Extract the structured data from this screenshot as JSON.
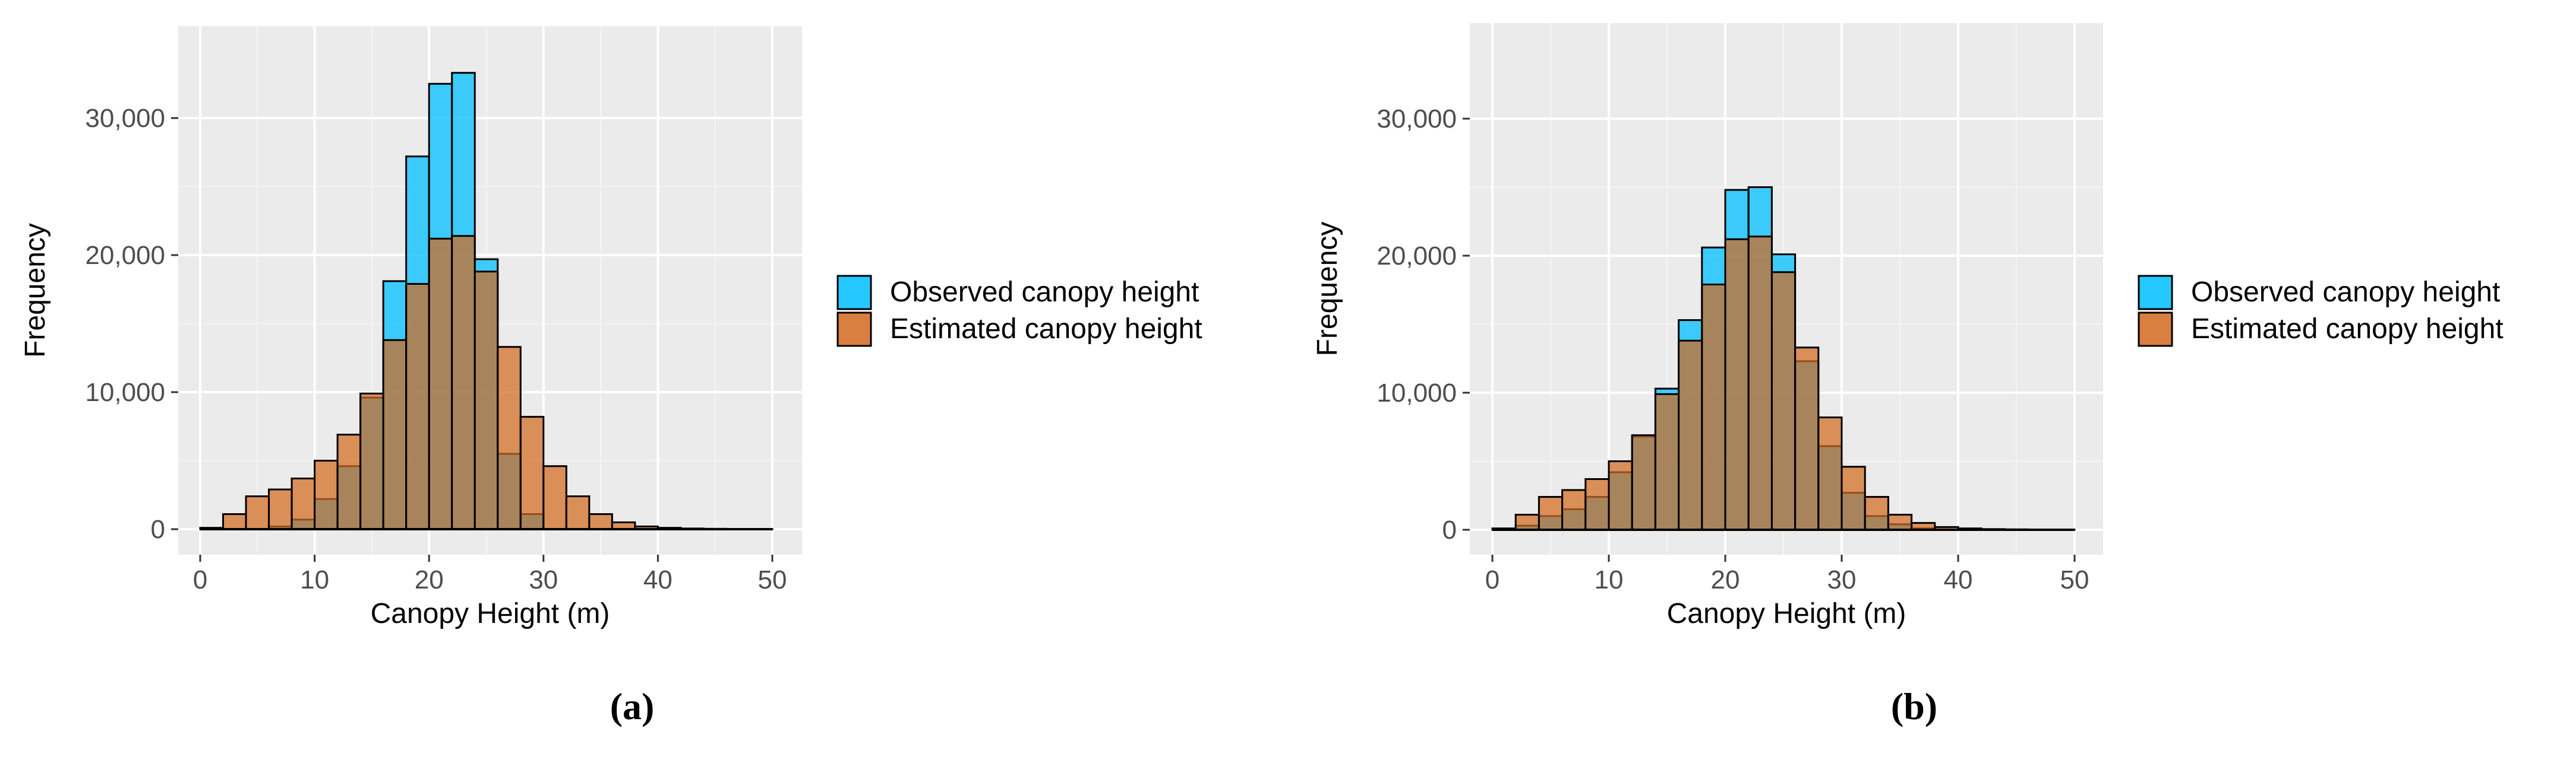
{
  "figure": {
    "panels": [
      {
        "panel_label": "(a)",
        "chart_data": {
          "type": "bar",
          "title": "",
          "xlabel": "Canopy Height (m)",
          "ylabel": "Frequency",
          "xlim": [
            0,
            50
          ],
          "ylim": [
            0,
            35000
          ],
          "x_ticks": [
            0,
            10,
            20,
            30,
            40,
            50
          ],
          "y_ticks": [
            0,
            10000,
            20000,
            30000
          ],
          "y_tick_labels": [
            "0",
            "10,000",
            "20,000",
            "30,000"
          ],
          "grid": true,
          "legend_position": "right",
          "bin_width": 2,
          "bin_centers": [
            1,
            3,
            5,
            7,
            9,
            11,
            13,
            15,
            17,
            19,
            21,
            23,
            25,
            27,
            29,
            31,
            33,
            35,
            37,
            39,
            41,
            43,
            45,
            47,
            49
          ],
          "series": [
            {
              "name": "Observed canopy height",
              "color": "#00BFFF",
              "values": [
                0,
                0,
                0,
                200,
                700,
                2200,
                4600,
                9600,
                18100,
                27200,
                32500,
                33300,
                19700,
                5500,
                1100,
                0,
                0,
                0,
                0,
                0,
                0,
                0,
                0,
                0,
                0
              ]
            },
            {
              "name": "Estimated canopy height",
              "color": "#D2691E",
              "values": [
                100,
                1100,
                2400,
                2900,
                3700,
                5000,
                6900,
                9900,
                13800,
                17900,
                21200,
                21400,
                18800,
                13300,
                8200,
                4600,
                2400,
                1100,
                500,
                200,
                100,
                50,
                30,
                20,
                10
              ]
            }
          ]
        }
      },
      {
        "panel_label": "(b)",
        "chart_data": {
          "type": "bar",
          "title": "",
          "xlabel": "Canopy Height (m)",
          "ylabel": "Frequency",
          "xlim": [
            0,
            50
          ],
          "ylim": [
            0,
            35000
          ],
          "x_ticks": [
            0,
            10,
            20,
            30,
            40,
            50
          ],
          "y_ticks": [
            0,
            10000,
            20000,
            30000
          ],
          "y_tick_labels": [
            "0",
            "10,000",
            "20,000",
            "30,000"
          ],
          "grid": true,
          "legend_position": "right",
          "bin_width": 2,
          "bin_centers": [
            1,
            3,
            5,
            7,
            9,
            11,
            13,
            15,
            17,
            19,
            21,
            23,
            25,
            27,
            29,
            31,
            33,
            35,
            37,
            39,
            41,
            43,
            45,
            47,
            49
          ],
          "series": [
            {
              "name": "Observed canopy height",
              "color": "#00BFFF",
              "values": [
                0,
                300,
                1000,
                1500,
                2400,
                4200,
                6800,
                10300,
                15300,
                20600,
                24800,
                25000,
                20100,
                12300,
                6100,
                2700,
                1000,
                400,
                100,
                0,
                0,
                0,
                0,
                0,
                0
              ]
            },
            {
              "name": "Estimated canopy height",
              "color": "#D2691E",
              "values": [
                100,
                1100,
                2400,
                2900,
                3700,
                5000,
                6900,
                9900,
                13800,
                17900,
                21200,
                21400,
                18800,
                13300,
                8200,
                4600,
                2400,
                1100,
                500,
                200,
                100,
                50,
                30,
                20,
                10
              ]
            }
          ]
        }
      }
    ]
  }
}
